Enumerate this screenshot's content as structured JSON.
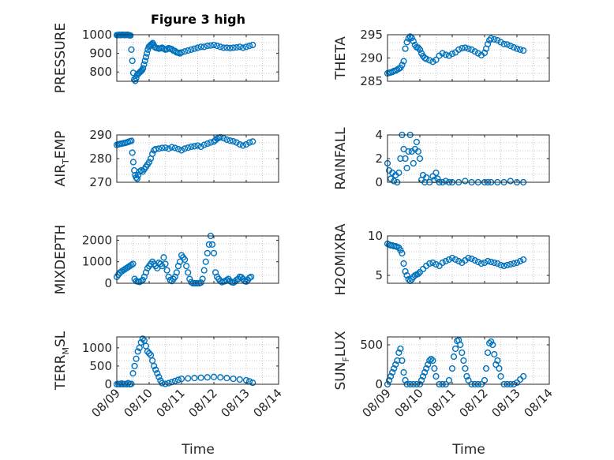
{
  "figure": {
    "title": "Figure 3 high",
    "xlabel": "Time",
    "marker_color": "#0072bd"
  },
  "chart_data": [
    {
      "type": "scatter",
      "title": "Figure 3 high",
      "ylabel": "PRESSURE",
      "ylim": [
        750,
        1000
      ],
      "yticks": [
        800,
        900,
        1000
      ],
      "xlim": [
        0,
        5
      ],
      "xticks": [
        0,
        1,
        2,
        3,
        4,
        5
      ],
      "xtick_labels": [
        "08/09",
        "08/10",
        "08/11",
        "08/12",
        "08/13",
        "08/14"
      ],
      "x": [
        0.0,
        0.03,
        0.06,
        0.09,
        0.12,
        0.15,
        0.18,
        0.21,
        0.24,
        0.27,
        0.3,
        0.33,
        0.36,
        0.39,
        0.42,
        0.45,
        0.48,
        0.51,
        0.54,
        0.57,
        0.6,
        0.63,
        0.66,
        0.69,
        0.72,
        0.75,
        0.78,
        0.81,
        0.84,
        0.87,
        0.9,
        0.93,
        0.96,
        0.99,
        1.02,
        1.05,
        1.08,
        1.11,
        1.14,
        1.17,
        1.2,
        1.25,
        1.3,
        1.35,
        1.4,
        1.45,
        1.5,
        1.55,
        1.6,
        1.65,
        1.7,
        1.75,
        1.8,
        1.85,
        1.9,
        1.95,
        2.0,
        2.1,
        2.2,
        2.3,
        2.4,
        2.5,
        2.6,
        2.7,
        2.8,
        2.9,
        3.0,
        3.1,
        3.2,
        3.3,
        3.4,
        3.5,
        3.6,
        3.7,
        3.8,
        3.9,
        4.0,
        4.1,
        4.2
      ],
      "y": [
        998,
        998,
        999,
        999,
        998,
        999,
        1000,
        999,
        998,
        999,
        999,
        1000,
        998,
        997,
        996,
        920,
        860,
        795,
        760,
        752,
        768,
        785,
        790,
        795,
        800,
        805,
        810,
        820,
        840,
        860,
        880,
        900,
        920,
        935,
        940,
        945,
        950,
        955,
        945,
        935,
        930,
        928,
        925,
        927,
        930,
        925,
        920,
        922,
        928,
        925,
        922,
        915,
        912,
        905,
        903,
        900,
        905,
        910,
        915,
        920,
        925,
        930,
        935,
        935,
        940,
        942,
        945,
        940,
        935,
        930,
        930,
        928,
        930,
        932,
        935,
        930,
        935,
        940,
        945
      ]
    },
    {
      "type": "scatter",
      "ylabel": "THETA",
      "ylim": [
        285,
        295
      ],
      "yticks": [
        285,
        290,
        295
      ],
      "xlim": [
        0,
        5
      ],
      "xticks": [
        0,
        1,
        2,
        3,
        4,
        5
      ],
      "xtick_labels": [
        "08/09",
        "08/10",
        "08/11",
        "08/12",
        "08/13",
        "08/14"
      ],
      "x": [
        0.0,
        0.05,
        0.1,
        0.15,
        0.2,
        0.25,
        0.3,
        0.35,
        0.4,
        0.45,
        0.5,
        0.55,
        0.6,
        0.65,
        0.7,
        0.75,
        0.8,
        0.85,
        0.9,
        0.95,
        1.0,
        1.05,
        1.1,
        1.15,
        1.2,
        1.3,
        1.4,
        1.5,
        1.6,
        1.7,
        1.8,
        1.9,
        2.0,
        2.1,
        2.2,
        2.3,
        2.4,
        2.5,
        2.6,
        2.7,
        2.8,
        2.9,
        3.0,
        3.05,
        3.1,
        3.15,
        3.2,
        3.3,
        3.4,
        3.5,
        3.6,
        3.7,
        3.8,
        3.9,
        4.0,
        4.1,
        4.2
      ],
      "y": [
        286.7,
        286.8,
        286.9,
        287.0,
        287.2,
        287.3,
        287.5,
        287.7,
        287.9,
        288.5,
        289.3,
        292.0,
        293.4,
        294.2,
        294.6,
        294.3,
        293.6,
        292.8,
        292.3,
        292.2,
        291.8,
        291.0,
        290.4,
        290.0,
        289.8,
        289.5,
        289.2,
        289.6,
        290.5,
        291.0,
        290.7,
        290.5,
        290.9,
        291.2,
        291.8,
        292.1,
        292.2,
        292.0,
        291.8,
        291.4,
        291.0,
        290.6,
        291.1,
        292.0,
        293.0,
        293.8,
        294.2,
        294.0,
        293.8,
        293.4,
        293.0,
        292.9,
        292.6,
        292.3,
        292.0,
        291.8,
        291.6
      ]
    },
    {
      "type": "scatter",
      "ylabel": "AIR_TEMP",
      "ylim": [
        270,
        290
      ],
      "yticks": [
        270,
        280,
        290
      ],
      "xlim": [
        0,
        5
      ],
      "xticks": [
        0,
        1,
        2,
        3,
        4,
        5
      ],
      "xtick_labels": [
        "08/09",
        "08/10",
        "08/11",
        "08/12",
        "08/13",
        "08/14"
      ],
      "x": [
        0.0,
        0.05,
        0.1,
        0.15,
        0.2,
        0.25,
        0.3,
        0.35,
        0.4,
        0.45,
        0.48,
        0.51,
        0.54,
        0.57,
        0.6,
        0.63,
        0.66,
        0.7,
        0.75,
        0.8,
        0.85,
        0.9,
        0.95,
        1.0,
        1.05,
        1.1,
        1.15,
        1.2,
        1.3,
        1.4,
        1.5,
        1.6,
        1.7,
        1.8,
        1.9,
        2.0,
        2.1,
        2.2,
        2.3,
        2.4,
        2.5,
        2.6,
        2.7,
        2.8,
        2.9,
        3.0,
        3.05,
        3.1,
        3.15,
        3.2,
        3.3,
        3.4,
        3.5,
        3.6,
        3.7,
        3.8,
        3.9,
        4.0,
        4.1,
        4.2
      ],
      "y": [
        285.8,
        286.0,
        286.2,
        286.3,
        286.5,
        286.6,
        286.8,
        287.0,
        287.3,
        287.5,
        282.5,
        278.5,
        275.0,
        273.0,
        272.0,
        271.5,
        273.0,
        274.5,
        275.0,
        274.5,
        275.5,
        276.5,
        277.5,
        278.5,
        280.0,
        282.0,
        283.5,
        284.0,
        284.2,
        284.5,
        284.6,
        284.2,
        284.8,
        284.5,
        284.0,
        283.5,
        284.2,
        284.6,
        285.0,
        285.2,
        285.5,
        285.0,
        285.8,
        286.3,
        286.8,
        287.2,
        287.8,
        288.4,
        288.8,
        289.0,
        288.6,
        288.0,
        287.6,
        287.3,
        286.8,
        286.0,
        285.5,
        286.0,
        286.8,
        287.2
      ]
    },
    {
      "type": "scatter",
      "ylabel": "RAINFALL",
      "ylim": [
        0,
        4
      ],
      "yticks": [
        0,
        2,
        4
      ],
      "xlim": [
        0,
        5
      ],
      "xticks": [
        0,
        1,
        2,
        3,
        4,
        5
      ],
      "xtick_labels": [
        "08/09",
        "08/10",
        "08/11",
        "08/12",
        "08/13",
        "08/14"
      ],
      "x": [
        0.0,
        0.05,
        0.1,
        0.15,
        0.2,
        0.25,
        0.3,
        0.35,
        0.4,
        0.45,
        0.5,
        0.55,
        0.6,
        0.65,
        0.7,
        0.75,
        0.8,
        0.85,
        0.9,
        0.95,
        1.0,
        1.05,
        1.1,
        1.15,
        1.2,
        1.3,
        1.4,
        1.45,
        1.5,
        1.55,
        1.6,
        1.7,
        1.8,
        1.9,
        2.0,
        2.2,
        2.4,
        2.6,
        2.8,
        3.0,
        3.1,
        3.2,
        3.4,
        3.6,
        3.8,
        4.0,
        4.2
      ],
      "y": [
        1.6,
        1.0,
        0.3,
        0.8,
        0.1,
        0.6,
        0.0,
        0.8,
        2.0,
        4.0,
        2.8,
        2.0,
        1.2,
        2.6,
        4.0,
        2.6,
        1.6,
        2.8,
        3.4,
        2.6,
        2.0,
        0.2,
        0.6,
        0.0,
        0.4,
        0.0,
        0.5,
        0.2,
        0.8,
        0.3,
        0.0,
        0.0,
        0.1,
        0.0,
        0.0,
        0.0,
        0.1,
        0.0,
        0.0,
        0.0,
        0.0,
        0.0,
        0.0,
        0.0,
        0.1,
        0.0,
        0.0
      ]
    },
    {
      "type": "scatter",
      "ylabel": "MIXDEPTH",
      "ylim": [
        0,
        2200
      ],
      "yticks": [
        0,
        1000,
        2000
      ],
      "xlim": [
        0,
        5
      ],
      "xticks": [
        0,
        1,
        2,
        3,
        4,
        5
      ],
      "xtick_labels": [
        "08/09",
        "08/10",
        "08/11",
        "08/12",
        "08/13",
        "08/14"
      ],
      "x": [
        0.0,
        0.05,
        0.1,
        0.15,
        0.2,
        0.25,
        0.3,
        0.35,
        0.4,
        0.45,
        0.5,
        0.55,
        0.6,
        0.65,
        0.7,
        0.75,
        0.8,
        0.85,
        0.9,
        0.95,
        1.0,
        1.05,
        1.1,
        1.15,
        1.2,
        1.25,
        1.3,
        1.35,
        1.4,
        1.45,
        1.5,
        1.55,
        1.6,
        1.65,
        1.7,
        1.75,
        1.8,
        1.85,
        1.9,
        1.95,
        2.0,
        2.05,
        2.1,
        2.15,
        2.2,
        2.25,
        2.3,
        2.35,
        2.4,
        2.45,
        2.5,
        2.55,
        2.6,
        2.65,
        2.7,
        2.75,
        2.8,
        2.85,
        2.9,
        2.95,
        3.0,
        3.05,
        3.1,
        3.15,
        3.2,
        3.25,
        3.3,
        3.35,
        3.4,
        3.45,
        3.5,
        3.55,
        3.6,
        3.65,
        3.7,
        3.75,
        3.8,
        3.85,
        3.9,
        3.95,
        4.0,
        4.05,
        4.1,
        4.15
      ],
      "y": [
        300,
        400,
        500,
        550,
        600,
        650,
        700,
        750,
        800,
        850,
        900,
        200,
        100,
        80,
        60,
        100,
        150,
        300,
        500,
        700,
        800,
        900,
        1000,
        900,
        800,
        700,
        950,
        900,
        800,
        1200,
        900,
        600,
        300,
        150,
        100,
        200,
        300,
        500,
        800,
        1000,
        1300,
        1200,
        1100,
        800,
        500,
        200,
        50,
        0,
        0,
        0,
        0,
        0,
        30,
        200,
        600,
        1000,
        1400,
        1800,
        2200,
        1800,
        1400,
        500,
        300,
        200,
        100,
        50,
        80,
        100,
        150,
        200,
        100,
        50,
        30,
        80,
        150,
        200,
        300,
        280,
        200,
        100,
        80,
        150,
        250,
        300
      ]
    },
    {
      "type": "scatter",
      "ylabel": "H2OMIXRA",
      "ylim": [
        4,
        10
      ],
      "yticks": [
        5,
        10
      ],
      "xlim": [
        0,
        5
      ],
      "xticks": [
        0,
        1,
        2,
        3,
        4,
        5
      ],
      "xtick_labels": [
        "08/09",
        "08/10",
        "08/11",
        "08/12",
        "08/13",
        "08/14"
      ],
      "x": [
        0.0,
        0.05,
        0.1,
        0.15,
        0.2,
        0.25,
        0.3,
        0.35,
        0.4,
        0.45,
        0.5,
        0.55,
        0.6,
        0.65,
        0.7,
        0.75,
        0.8,
        0.85,
        0.9,
        0.95,
        1.0,
        1.1,
        1.2,
        1.3,
        1.4,
        1.5,
        1.6,
        1.7,
        1.8,
        1.9,
        2.0,
        2.1,
        2.2,
        2.3,
        2.4,
        2.5,
        2.6,
        2.7,
        2.8,
        2.9,
        3.0,
        3.1,
        3.2,
        3.3,
        3.4,
        3.5,
        3.6,
        3.7,
        3.8,
        3.9,
        4.0,
        4.1,
        4.2
      ],
      "y": [
        9.0,
        8.9,
        8.8,
        8.8,
        8.7,
        8.7,
        8.6,
        8.5,
        8.2,
        7.8,
        6.5,
        5.5,
        5.0,
        4.5,
        4.3,
        4.5,
        4.8,
        5.0,
        5.1,
        5.2,
        5.4,
        5.8,
        6.2,
        6.5,
        6.6,
        6.4,
        6.2,
        6.6,
        6.8,
        7.0,
        7.2,
        7.0,
        6.8,
        6.6,
        6.9,
        7.2,
        7.1,
        6.9,
        6.7,
        6.5,
        6.6,
        6.8,
        6.7,
        6.6,
        6.5,
        6.3,
        6.2,
        6.3,
        6.4,
        6.5,
        6.6,
        6.8,
        7.0
      ]
    },
    {
      "type": "scatter",
      "ylabel": "TERR_MSL",
      "ylim": [
        0,
        1300
      ],
      "yticks": [
        0,
        500,
        1000
      ],
      "xlim": [
        0,
        5
      ],
      "xticks": [
        0,
        1,
        2,
        3,
        4,
        5
      ],
      "xtick_labels": [
        "08/09",
        "08/10",
        "08/11",
        "08/12",
        "08/13",
        "08/14"
      ],
      "x": [
        0.0,
        0.05,
        0.1,
        0.15,
        0.2,
        0.25,
        0.3,
        0.35,
        0.4,
        0.45,
        0.5,
        0.55,
        0.6,
        0.65,
        0.7,
        0.75,
        0.8,
        0.85,
        0.9,
        0.95,
        1.0,
        1.05,
        1.1,
        1.15,
        1.2,
        1.25,
        1.3,
        1.35,
        1.4,
        1.5,
        1.6,
        1.7,
        1.8,
        1.9,
        2.0,
        2.2,
        2.4,
        2.6,
        2.8,
        3.0,
        3.2,
        3.4,
        3.6,
        3.8,
        4.0,
        4.1,
        4.2
      ],
      "y": [
        0,
        10,
        0,
        20,
        0,
        10,
        0,
        30,
        0,
        10,
        300,
        500,
        700,
        900,
        1000,
        1150,
        1250,
        1200,
        1050,
        900,
        850,
        800,
        650,
        500,
        400,
        300,
        200,
        100,
        30,
        10,
        30,
        60,
        90,
        120,
        150,
        160,
        170,
        180,
        190,
        200,
        190,
        170,
        150,
        130,
        110,
        80,
        40
      ]
    },
    {
      "type": "scatter",
      "ylabel": "SUN_FLUX",
      "ylim": [
        0,
        600
      ],
      "yticks": [
        0,
        500
      ],
      "xlim": [
        0,
        5
      ],
      "xticks": [
        0,
        1,
        2,
        3,
        4,
        5
      ],
      "xtick_labels": [
        "08/09",
        "08/10",
        "08/11",
        "08/12",
        "08/13",
        "08/14"
      ],
      "x": [
        0.0,
        0.05,
        0.1,
        0.15,
        0.2,
        0.25,
        0.3,
        0.35,
        0.4,
        0.45,
        0.5,
        0.55,
        0.6,
        0.7,
        0.8,
        0.9,
        1.0,
        1.05,
        1.1,
        1.15,
        1.2,
        1.25,
        1.3,
        1.35,
        1.4,
        1.45,
        1.5,
        1.6,
        1.7,
        1.8,
        1.9,
        2.0,
        2.05,
        2.1,
        2.15,
        2.2,
        2.25,
        2.3,
        2.35,
        2.4,
        2.45,
        2.5,
        2.6,
        2.7,
        2.8,
        2.9,
        3.0,
        3.05,
        3.1,
        3.15,
        3.2,
        3.25,
        3.3,
        3.35,
        3.4,
        3.45,
        3.5,
        3.6,
        3.7,
        3.8,
        3.9,
        4.0,
        4.1,
        4.2
      ],
      "y": [
        0,
        50,
        100,
        150,
        200,
        250,
        300,
        400,
        450,
        300,
        150,
        50,
        0,
        0,
        0,
        0,
        0,
        50,
        100,
        150,
        200,
        250,
        300,
        320,
        300,
        200,
        100,
        0,
        0,
        0,
        50,
        200,
        350,
        450,
        550,
        560,
        500,
        400,
        300,
        200,
        100,
        50,
        0,
        0,
        0,
        0,
        50,
        200,
        400,
        520,
        540,
        500,
        380,
        250,
        300,
        200,
        100,
        0,
        0,
        0,
        0,
        20,
        60,
        100
      ]
    }
  ]
}
